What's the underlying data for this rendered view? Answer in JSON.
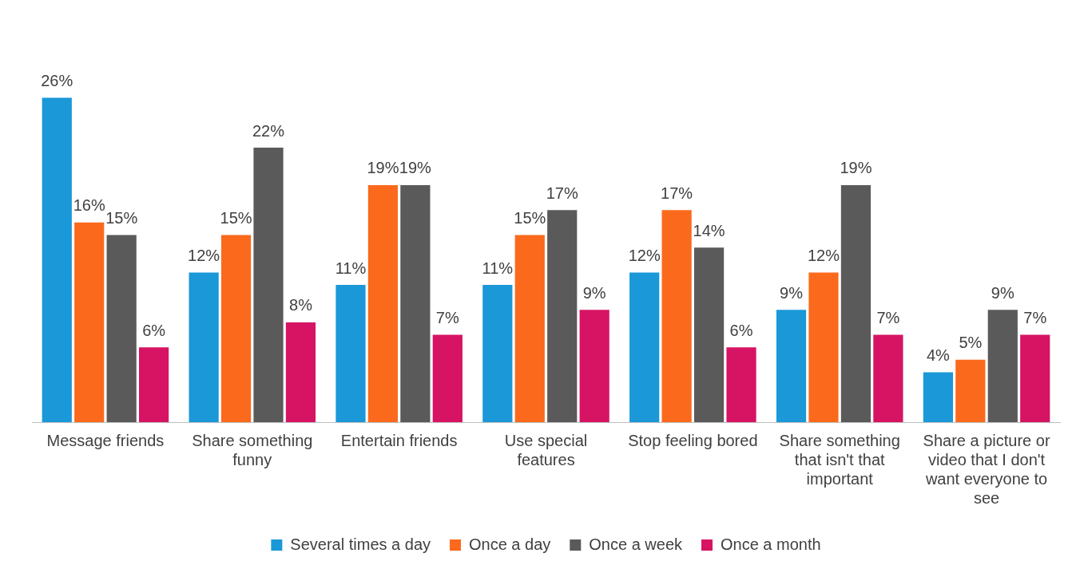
{
  "chart_data": {
    "type": "bar",
    "categories": [
      "Message friends",
      "Share something funny",
      "Entertain friends",
      "Use special features",
      "Stop feeling bored",
      "Share something that isn't that important",
      "Share a picture or video that I don't want everyone to see"
    ],
    "series": [
      {
        "name": "Several times a day",
        "color": "#1b98d8",
        "values": [
          26,
          12,
          11,
          11,
          12,
          9,
          4
        ],
        "value_labels": [
          "26%",
          "12%",
          "11%",
          "11%",
          "12%",
          "9%",
          "4%"
        ]
      },
      {
        "name": "Once a day",
        "color": "#fb6a1c",
        "values": [
          16,
          15,
          19,
          15,
          17,
          12,
          5
        ],
        "value_labels": [
          "16%",
          "15%",
          "19%",
          "15%",
          "17%",
          "12%",
          "5%"
        ]
      },
      {
        "name": "Once a week",
        "color": "#5a5a5a",
        "values": [
          15,
          22,
          19,
          17,
          14,
          19,
          9
        ],
        "value_labels": [
          "15%",
          "22%",
          "19%",
          "17%",
          "14%",
          "19%",
          "9%"
        ]
      },
      {
        "name": "Once a month",
        "color": "#d61463",
        "values": [
          6,
          8,
          7,
          9,
          6,
          7,
          7
        ],
        "value_labels": [
          "6%",
          "8%",
          "7%",
          "9%",
          "6%",
          "7%",
          "7%"
        ]
      }
    ],
    "grid": false,
    "legend": "bottom",
    "tick_labels": "x"
  }
}
